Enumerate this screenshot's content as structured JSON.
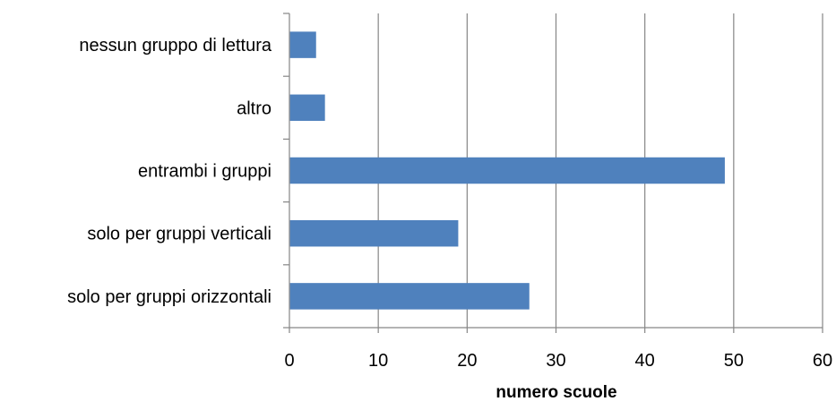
{
  "chart_data": {
    "type": "bar",
    "orientation": "horizontal",
    "categories": [
      "nessun gruppo di lettura",
      "altro",
      "entrambi i gruppi",
      "solo per gruppi verticali",
      "solo per gruppi orizzontali"
    ],
    "values": [
      3,
      4,
      49,
      19,
      27
    ],
    "xlabel": "numero scuole",
    "ylabel": "",
    "xlim": [
      0,
      60
    ],
    "xticks": [
      "0",
      "10",
      "20",
      "30",
      "40",
      "50",
      "60"
    ],
    "grid": "vertical",
    "legend": "none",
    "bar_color": "#4F81BD",
    "grid_color": "#868686",
    "axis_color": "#868686"
  }
}
